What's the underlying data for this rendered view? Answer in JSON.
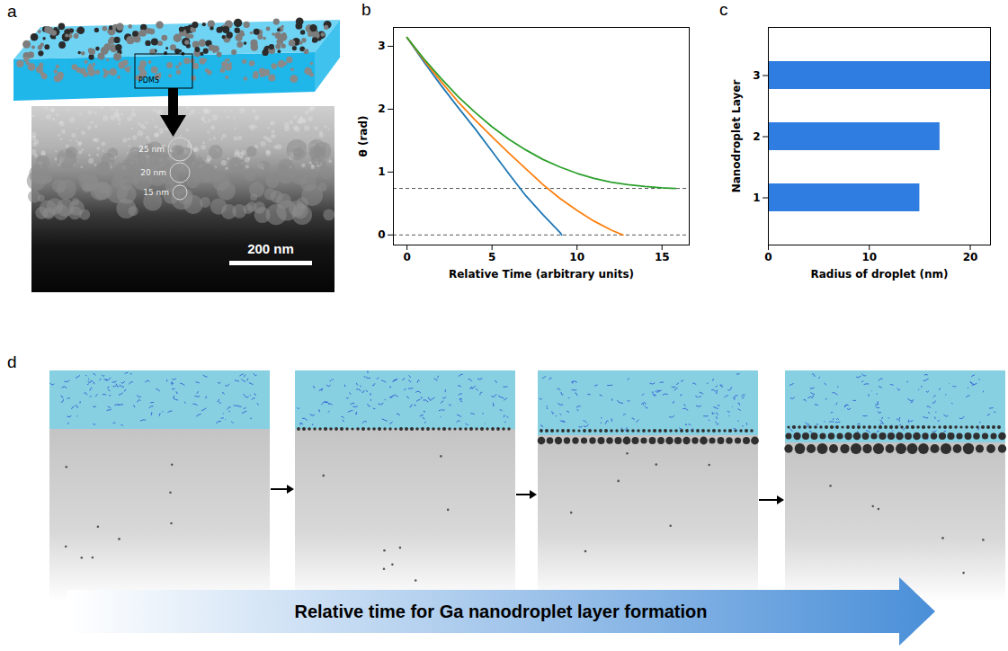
{
  "panel_labels": [
    "a",
    "b",
    "c",
    "d"
  ],
  "panel_a": {
    "slab_label": "PDMS",
    "circle_labels": [
      "25 nm",
      "20 nm",
      "15 nm"
    ],
    "scale_bar": "200 nm"
  },
  "chart_data": [
    {
      "type": "line",
      "xlabel": "Relative Time (arbitrary units)",
      "ylabel": "θ (rad)",
      "xlim": [
        -0.8,
        16.6
      ],
      "xticks": [
        0,
        5,
        10,
        15
      ],
      "ylim": [
        -0.16,
        3.3
      ],
      "yticks": [
        0,
        1,
        2,
        3
      ],
      "reference_lines": [
        0.74,
        0
      ],
      "series": [
        {
          "color": "#1f77b4",
          "x": [
            0,
            1,
            2,
            3,
            4,
            5,
            6,
            7,
            8,
            9,
            9.1
          ],
          "values": [
            3.14,
            2.75,
            2.38,
            2.03,
            1.69,
            1.33,
            0.97,
            0.62,
            0.32,
            0.04,
            0
          ]
        },
        {
          "color": "#ff7f0e",
          "x": [
            0,
            1,
            2,
            3,
            4,
            5,
            6,
            7,
            8,
            9,
            10,
            11,
            12,
            12.7
          ],
          "values": [
            3.14,
            2.78,
            2.44,
            2.12,
            1.83,
            1.56,
            1.3,
            1.05,
            0.8,
            0.58,
            0.39,
            0.22,
            0.08,
            0
          ]
        },
        {
          "color": "#2ca02c",
          "x": [
            0,
            1,
            2,
            3,
            4,
            5,
            6,
            7,
            8,
            9,
            10,
            11,
            12,
            13,
            14,
            15,
            15.8
          ],
          "values": [
            3.14,
            2.8,
            2.49,
            2.2,
            1.95,
            1.72,
            1.52,
            1.35,
            1.2,
            1.08,
            0.98,
            0.9,
            0.84,
            0.8,
            0.77,
            0.75,
            0.74
          ]
        }
      ]
    },
    {
      "type": "bar",
      "orientation": "horizontal",
      "xlabel": "Radius of droplet (nm)",
      "ylabel": "Nanodroplet Layer",
      "categories": [
        "1",
        "2",
        "3"
      ],
      "values": [
        15,
        17,
        22
      ],
      "color": "#2f7de1",
      "xlim": [
        0,
        22
      ],
      "xticks": [
        0,
        10,
        20
      ]
    }
  ],
  "panel_d": {
    "arrow_label": "Relative time for Ga nanodroplet layer formation"
  }
}
